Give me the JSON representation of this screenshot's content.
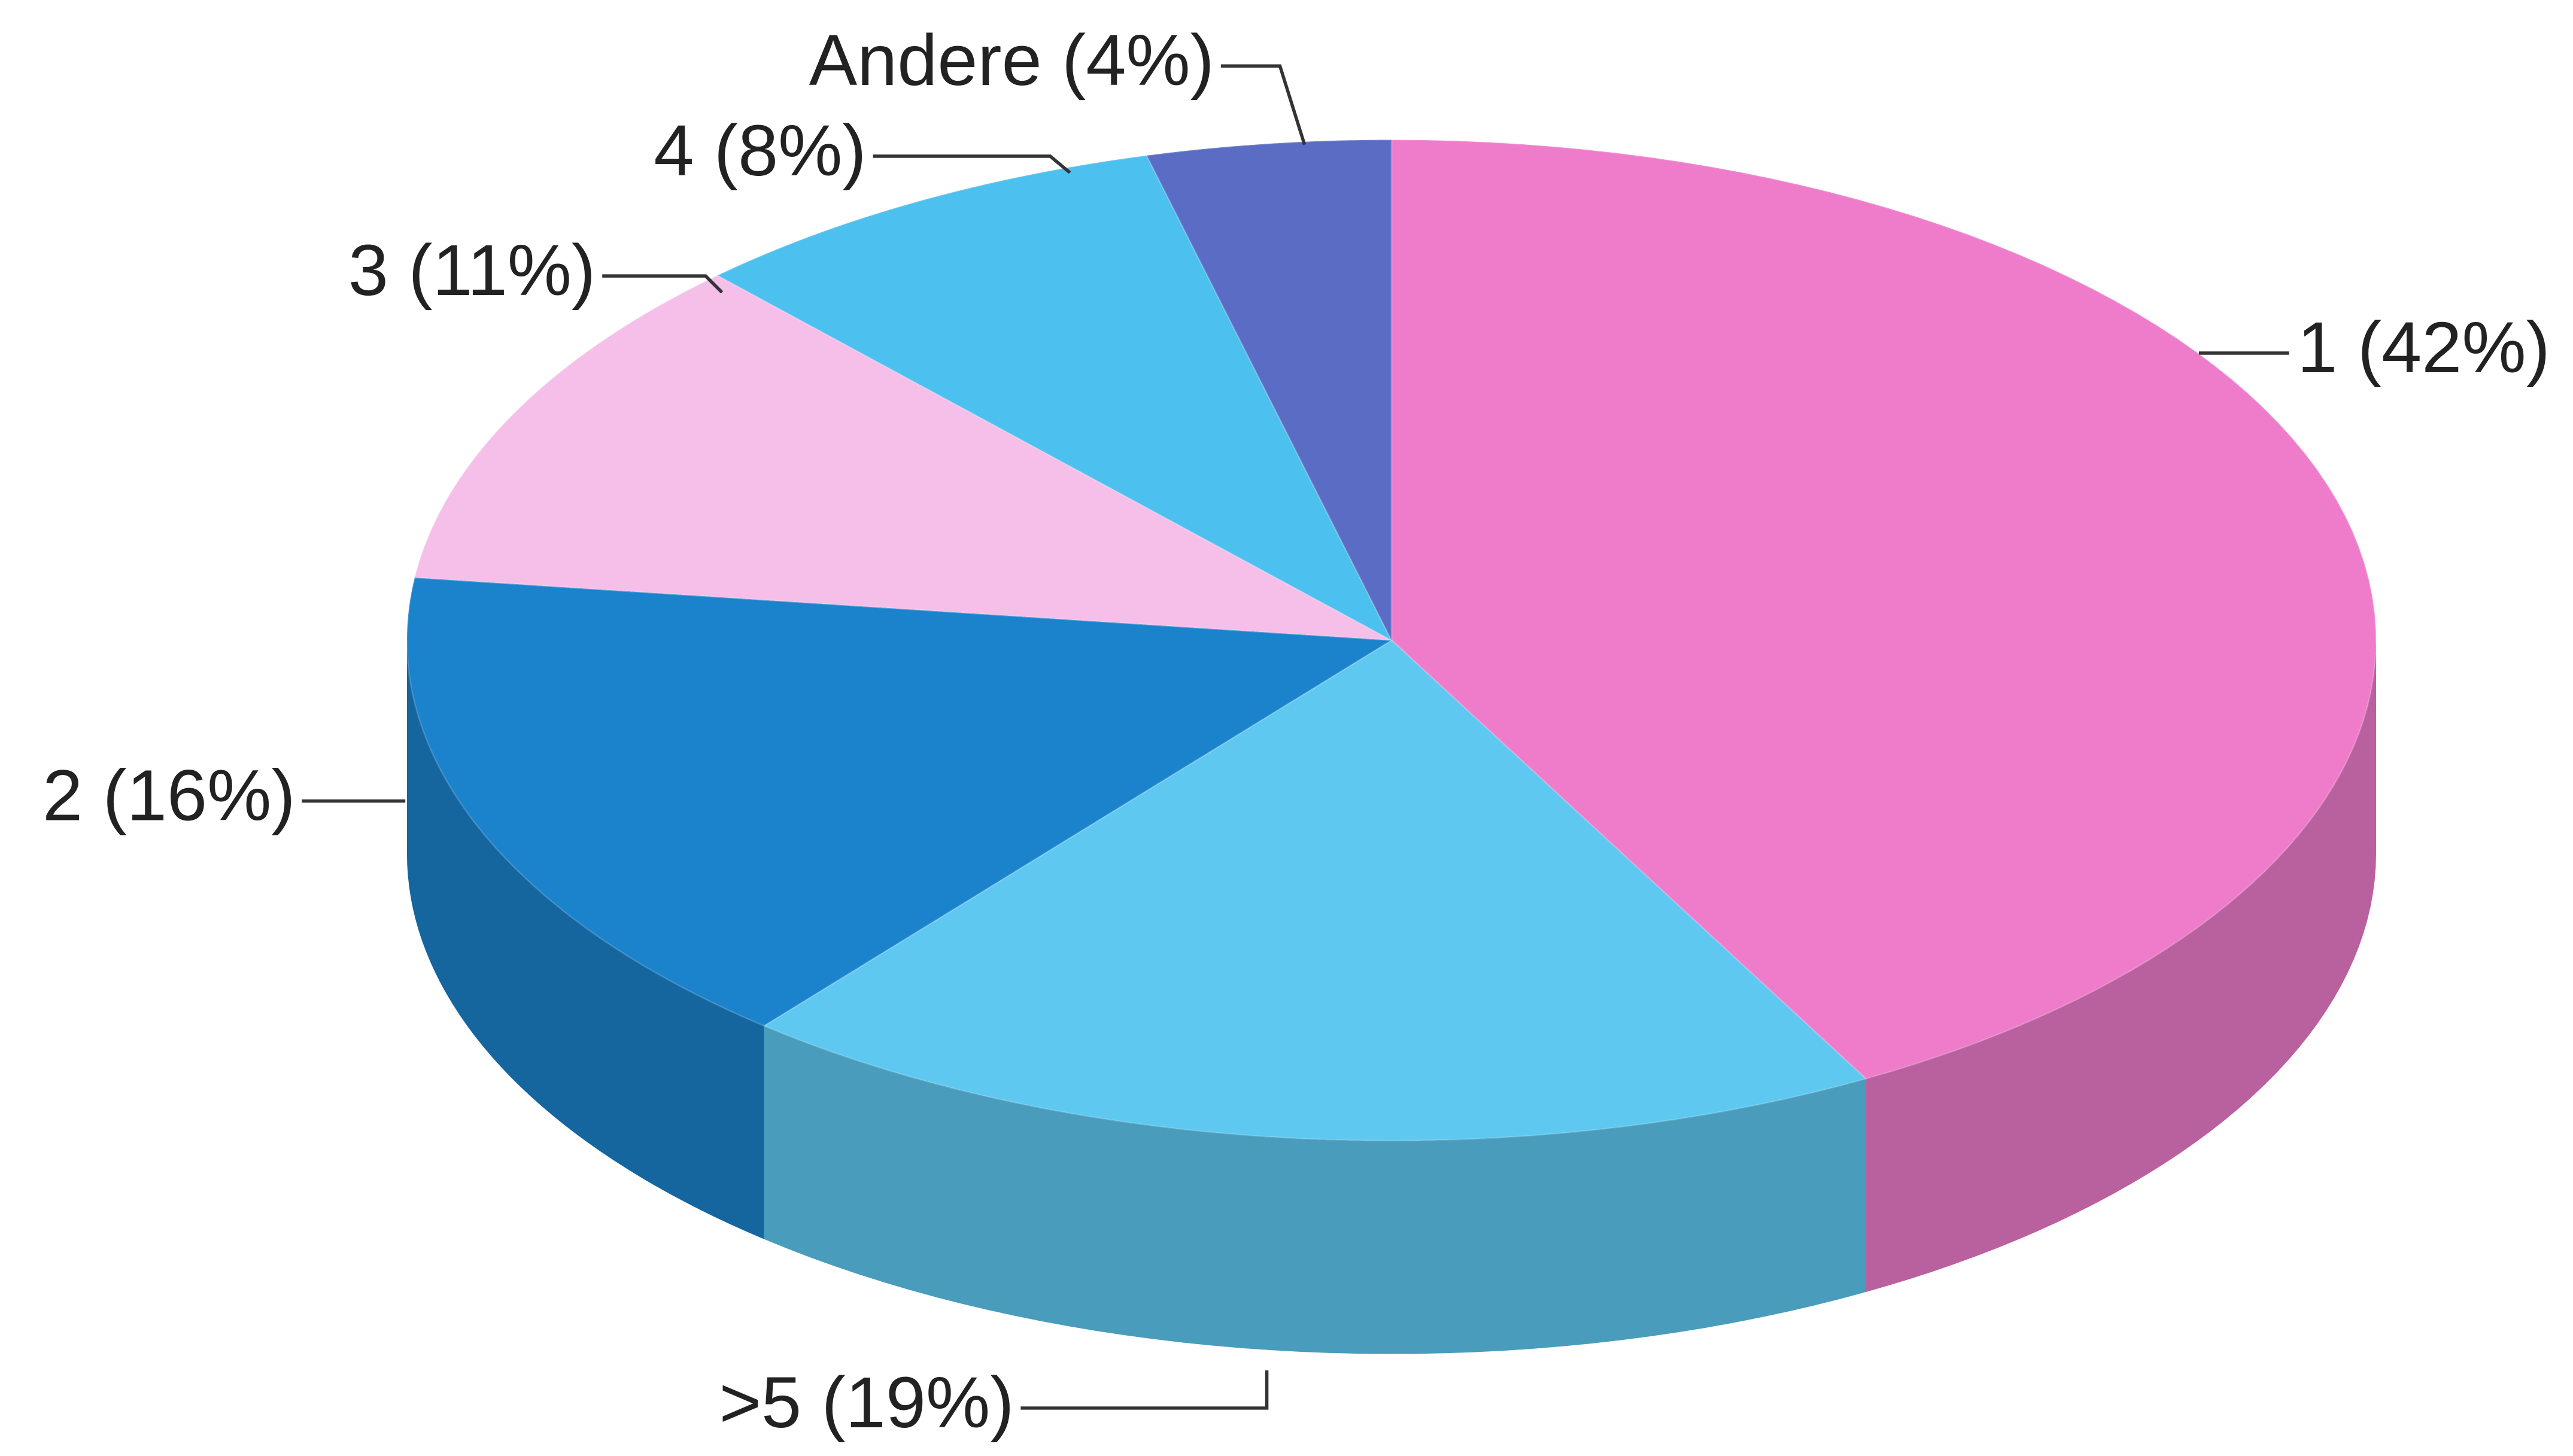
{
  "chart_data": {
    "type": "pie",
    "values": [
      42,
      19,
      16,
      11,
      8,
      4
    ],
    "value_labels": [
      "1 (42%)",
      ">5 (19%)",
      "2 (16%)",
      "3 (11%)",
      "4 (8%)",
      "Andere (4%)"
    ],
    "colors": [
      "#ee7ccb",
      "#5ec8f0",
      "#1b82cc",
      "#f5bfe9",
      "#4cc0ef",
      "#5a6cc4"
    ]
  }
}
